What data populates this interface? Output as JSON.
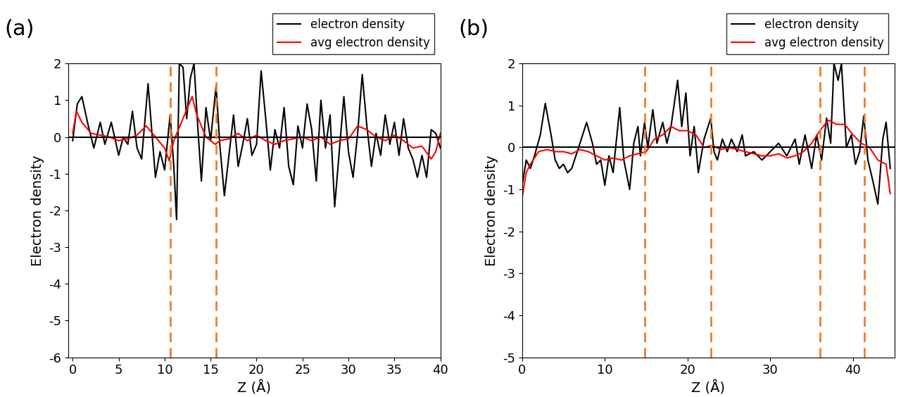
{
  "chart_data": [
    {
      "type": "line",
      "label": "(a)",
      "x_label": "Z (Å)",
      "y_label": "Electron density",
      "xlim": [
        -0.5,
        40
      ],
      "xticks": [
        0,
        5,
        10,
        15,
        20,
        25,
        30,
        35,
        40
      ],
      "ylim": [
        -6,
        2
      ],
      "yticks": [
        -6,
        -5,
        -4,
        -3,
        -2,
        -1,
        0,
        1,
        2
      ],
      "legend": "upper right",
      "baseline": 0,
      "interfaces": [
        10.6,
        15.6
      ],
      "interface_color": "#ed7d31",
      "series": [
        {
          "name": "electron density",
          "color": "#000000",
          "x": [
            0,
            0.5,
            1,
            1.7,
            2.3,
            3,
            3.5,
            4.2,
            5,
            5.5,
            6,
            6.5,
            7,
            7.5,
            8.2,
            9,
            9.5,
            10,
            10.6,
            11,
            11.3,
            11.6,
            12,
            12.4,
            12.8,
            13.2,
            13.6,
            14,
            14.5,
            15,
            15.6,
            16,
            16.5,
            17,
            17.5,
            18,
            18.5,
            19,
            19.5,
            20,
            20.5,
            21,
            21.5,
            22,
            22.5,
            23,
            23.5,
            24,
            24.5,
            25,
            25.5,
            26,
            26.5,
            27,
            27.5,
            28,
            28.5,
            29,
            29.5,
            30,
            30.5,
            31,
            31.5,
            32,
            32.5,
            33,
            33.5,
            34,
            34.5,
            35,
            35.5,
            36,
            36.5,
            37,
            37.5,
            38,
            38.5,
            39,
            39.5,
            40
          ],
          "values": [
            -0.1,
            0.9,
            1.1,
            0.3,
            -0.3,
            0.4,
            -0.2,
            0.4,
            -0.5,
            0,
            -0.2,
            0.7,
            -0.3,
            -0.6,
            1.45,
            -1.1,
            -0.4,
            -0.9,
            0.6,
            -0.8,
            -2.25,
            2,
            1.9,
            0.5,
            1.6,
            2,
            0.3,
            -1.2,
            0.8,
            -0.1,
            1.4,
            -0.2,
            -1.6,
            -0.5,
            0.6,
            -0.8,
            -0.2,
            0.5,
            -0.5,
            -0.2,
            1.8,
            0.5,
            -0.9,
            0.2,
            -0.3,
            0.8,
            -0.8,
            -1.3,
            0.3,
            -0.3,
            0.9,
            0.2,
            -1.2,
            1.0,
            -0.3,
            0.6,
            -1.9,
            -0.4,
            1.1,
            -0.4,
            -1.1,
            0.1,
            1.7,
            0.3,
            -0.8,
            0.1,
            -0.5,
            0.6,
            -0.2,
            0.4,
            -0.5,
            0.5,
            -0.3,
            -0.6,
            -1.1,
            -0.5,
            -1.1,
            0.2,
            0.1,
            -0.3
          ]
        },
        {
          "name": "avg electron density",
          "color": "#ff0000",
          "x": [
            0,
            0.4,
            1,
            2,
            3,
            4,
            5,
            6,
            7,
            8,
            9,
            10,
            10.5,
            11,
            12,
            13,
            13.5,
            14.5,
            15.5,
            16,
            17,
            18,
            19,
            20,
            21,
            22,
            23,
            24,
            25,
            26,
            27,
            28,
            29,
            30,
            31,
            32,
            33,
            34,
            35,
            36,
            37,
            38,
            39,
            39.5,
            40
          ],
          "values": [
            0.1,
            0.7,
            0.4,
            0.1,
            0.05,
            0,
            -0.1,
            -0.05,
            0.05,
            0.3,
            0,
            -0.3,
            -0.65,
            -0.1,
            0.5,
            1.1,
            0.6,
            0,
            -0.2,
            -0.1,
            -0.05,
            0.1,
            -0.1,
            0.05,
            -0.1,
            -0.2,
            -0.1,
            -0.05,
            0,
            -0.1,
            0,
            -0.2,
            -0.1,
            -0.05,
            0.3,
            0.2,
            0,
            -0.1,
            0.05,
            -0.1,
            -0.3,
            -0.25,
            -0.6,
            -0.4,
            0.1
          ]
        }
      ]
    },
    {
      "type": "line",
      "label": "(b)",
      "x_label": "Z (Å)",
      "y_label": "Electron density",
      "xlim": [
        0,
        45
      ],
      "xticks": [
        0,
        10,
        20,
        30,
        40
      ],
      "ylim": [
        -5,
        2
      ],
      "yticks": [
        -5,
        -4,
        -3,
        -2,
        -1,
        0,
        1,
        2
      ],
      "legend": "upper right",
      "baseline": 0,
      "interfaces": [
        14.8,
        22.8,
        36.0,
        41.4
      ],
      "interface_color": "#ed7d31",
      "series": [
        {
          "name": "electron density",
          "color": "#000000",
          "x": [
            0,
            0.5,
            1,
            1.5,
            2.2,
            2.8,
            3.5,
            4,
            4.5,
            5,
            5.5,
            6,
            7,
            7.8,
            8.5,
            9,
            9.5,
            10,
            10.5,
            11,
            11.8,
            12.3,
            13,
            13.5,
            14,
            14.3,
            14.8,
            15.2,
            15.8,
            16.3,
            17,
            17.5,
            18,
            18.8,
            19.3,
            19.8,
            20.3,
            20.8,
            21.3,
            22,
            22.8,
            23.2,
            23.6,
            24.2,
            24.8,
            25.3,
            26,
            26.6,
            27,
            28,
            29,
            30,
            31,
            32,
            33,
            33.5,
            34.2,
            35,
            35.6,
            36.2,
            36.8,
            37.3,
            37.7,
            38.2,
            38.6,
            39.2,
            39.8,
            40.3,
            40.8,
            41.3,
            41.8,
            42.4,
            43,
            43.6,
            44,
            44.5
          ],
          "values": [
            -0.9,
            -0.3,
            -0.5,
            -0.2,
            0.3,
            1.05,
            0.3,
            -0.3,
            -0.5,
            -0.4,
            -0.6,
            -0.5,
            0.1,
            0.6,
            0.1,
            -0.4,
            -0.3,
            -0.9,
            -0.2,
            -0.6,
            0.95,
            -0.3,
            -1.0,
            0.1,
            0.5,
            -0.2,
            0.6,
            0,
            0.9,
            0.1,
            0.6,
            0.1,
            0.5,
            1.6,
            0.5,
            1.3,
            -0.2,
            0.5,
            -0.6,
            0.2,
            0.7,
            -0.1,
            -0.3,
            0.2,
            -0.1,
            0.2,
            -0.1,
            0.3,
            -0.2,
            -0.1,
            -0.3,
            -0.1,
            0.1,
            -0.2,
            0.2,
            -0.4,
            0.3,
            -0.5,
            0.3,
            -0.3,
            0.7,
            0.1,
            2,
            1.6,
            2,
            0,
            0.3,
            -0.4,
            -0.1,
            0.75,
            -0.3,
            -0.8,
            -1.35,
            0.2,
            0.6,
            -0.5
          ]
        },
        {
          "name": "avg electron density",
          "color": "#ff0000",
          "x": [
            0,
            0.5,
            1,
            2,
            3,
            4,
            5,
            6,
            7,
            8,
            9,
            10,
            11,
            12,
            13,
            14,
            15,
            16,
            17,
            18,
            19,
            20,
            21,
            22,
            23,
            24,
            25,
            26,
            27,
            28,
            29,
            30,
            31,
            32,
            33,
            34,
            35,
            36,
            37,
            38,
            39,
            40,
            41,
            42,
            43,
            44,
            44.5
          ],
          "values": [
            -1.2,
            -0.6,
            -0.4,
            -0.1,
            -0.05,
            -0.1,
            -0.1,
            -0.15,
            -0.05,
            -0.1,
            -0.2,
            -0.3,
            -0.25,
            -0.3,
            -0.2,
            -0.15,
            -0.1,
            0.2,
            0.3,
            0.5,
            0.4,
            0.4,
            0.3,
            0,
            0.05,
            -0.05,
            0,
            -0.05,
            -0.1,
            -0.15,
            -0.2,
            -0.2,
            -0.15,
            -0.25,
            -0.2,
            -0.1,
            0.1,
            0.4,
            0.65,
            0.55,
            0.55,
            0.3,
            0.1,
            0,
            -0.3,
            -0.4,
            -1.1
          ]
        }
      ]
    }
  ]
}
